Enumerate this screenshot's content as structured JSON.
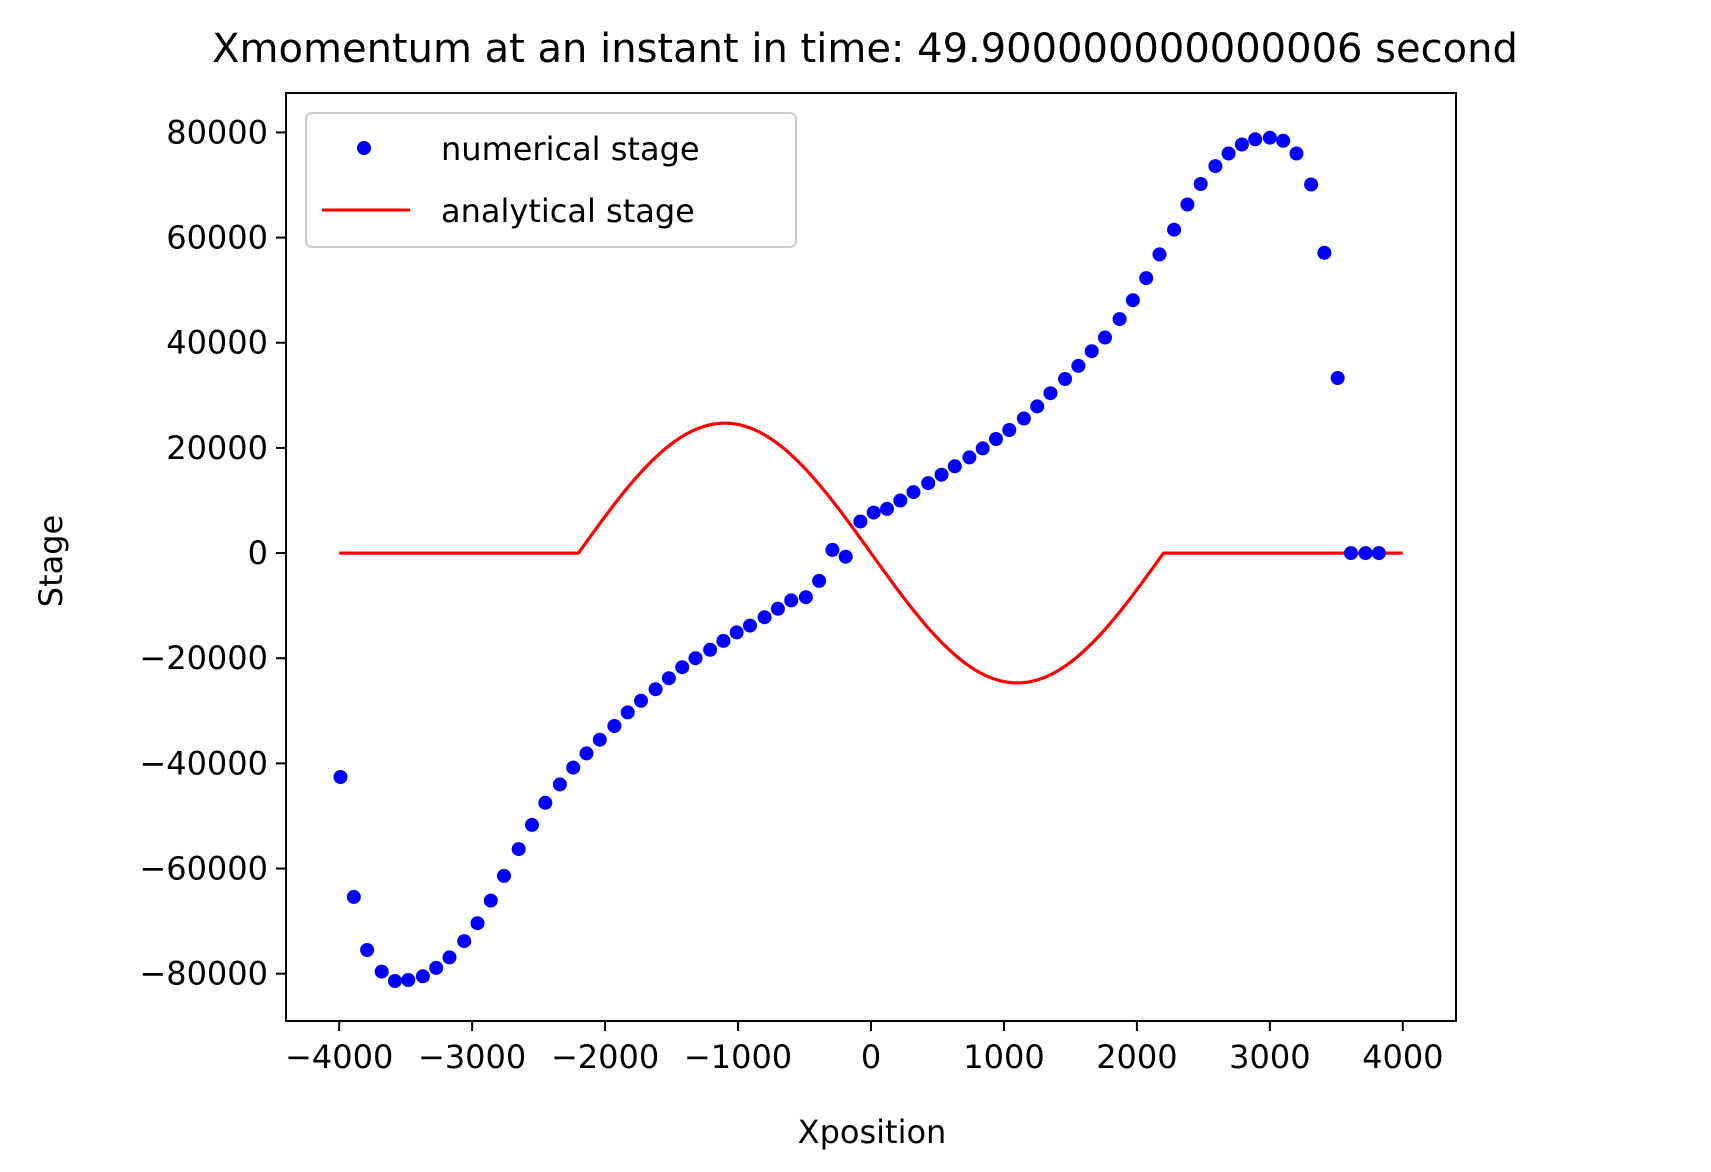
{
  "chart_data": {
    "type": "scatter",
    "title": "Xmomentum at an instant in time: 49.900000000000006 second",
    "xlabel": "Xposition",
    "ylabel": "Stage",
    "xlim": [
      -4400,
      4400
    ],
    "ylim": [
      -89000,
      87500
    ],
    "xticks": [
      -4000,
      -3000,
      -2000,
      -1000,
      0,
      1000,
      2000,
      3000,
      4000
    ],
    "xtick_labels": [
      "−4000",
      "−3000",
      "−2000",
      "−1000",
      "0",
      "1000",
      "2000",
      "3000",
      "4000"
    ],
    "yticks": [
      80000,
      60000,
      40000,
      20000,
      0,
      -20000,
      -40000,
      -60000,
      -80000
    ],
    "ytick_labels": [
      "80000",
      "60000",
      "40000",
      "20000",
      "0",
      "−20000",
      "−40000",
      "−60000",
      "−80000"
    ],
    "grid": false,
    "legend_position": "upper left",
    "series": [
      {
        "name": "numerical stage",
        "style": "markers",
        "color": "#0000ff",
        "x": [
          -3990,
          -3890,
          -3790,
          -3680,
          -3580,
          -3480,
          -3370,
          -3270,
          -3170,
          -3060,
          -2960,
          -2860,
          -2760,
          -2650,
          -2550,
          -2450,
          -2340,
          -2240,
          -2140,
          -2040,
          -1930,
          -1830,
          -1730,
          -1620,
          -1520,
          -1420,
          -1320,
          -1210,
          -1110,
          -1010,
          -910,
          -800,
          -700,
          -600,
          -490,
          -390,
          -290,
          -190,
          -80,
          20,
          120,
          220,
          320,
          430,
          530,
          630,
          740,
          840,
          940,
          1040,
          1150,
          1250,
          1350,
          1460,
          1560,
          1660,
          1760,
          1870,
          1970,
          2070,
          2170,
          2280,
          2380,
          2480,
          2590,
          2690,
          2790,
          2890,
          3000,
          3100,
          3200,
          3310,
          3410,
          3510,
          3610,
          3720,
          3820
        ],
        "y": [
          -42600,
          -65400,
          -75500,
          -79600,
          -81400,
          -81200,
          -80500,
          -78900,
          -76900,
          -73800,
          -70400,
          -66100,
          -61400,
          -56300,
          -51700,
          -47500,
          -44000,
          -40800,
          -38100,
          -35500,
          -32900,
          -30300,
          -28100,
          -25900,
          -23800,
          -21700,
          -20000,
          -18400,
          -16700,
          -15100,
          -13800,
          -12200,
          -10600,
          -9000,
          -8400,
          -5300,
          600,
          -700,
          6000,
          7700,
          8400,
          10000,
          11600,
          13300,
          14900,
          16500,
          18200,
          19900,
          21700,
          23400,
          25600,
          27900,
          30400,
          33100,
          35600,
          38400,
          41000,
          44500,
          48100,
          52300,
          56800,
          61500,
          66300,
          70200,
          73600,
          76000,
          77700,
          78700,
          79000,
          78400,
          76000,
          70100,
          57100,
          33300,
          0,
          0,
          0
        ]
      },
      {
        "name": "analytical stage",
        "style": "line",
        "color": "#ff0000"
      }
    ]
  }
}
